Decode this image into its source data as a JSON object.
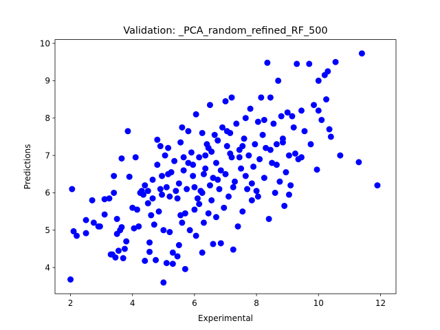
{
  "chart_data": {
    "type": "scatter",
    "title": "Validation: _PCA_random_refined_RF_500",
    "xlabel": "Experimental",
    "ylabel": "Predictions",
    "xlim": [
      1.5,
      12.5
    ],
    "ylim": [
      3.3,
      10.1
    ],
    "xticks": [
      2,
      4,
      6,
      8,
      10,
      12
    ],
    "yticks": [
      4,
      5,
      6,
      7,
      8,
      9,
      10
    ],
    "marker_color": "#0000ff",
    "grid": false,
    "legend": "none",
    "points": [
      [
        2.0,
        3.68
      ],
      [
        2.05,
        6.1
      ],
      [
        2.1,
        4.97
      ],
      [
        2.2,
        4.85
      ],
      [
        2.5,
        4.92
      ],
      [
        2.5,
        5.27
      ],
      [
        2.7,
        5.8
      ],
      [
        2.75,
        5.2
      ],
      [
        2.95,
        5.1
      ],
      [
        3.1,
        5.42
      ],
      [
        3.1,
        5.83
      ],
      [
        3.25,
        5.85
      ],
      [
        3.35,
        4.35
      ],
      [
        3.4,
        6.0
      ],
      [
        3.4,
        6.45
      ],
      [
        3.45,
        4.27
      ],
      [
        3.5,
        5.3
      ],
      [
        3.5,
        4.9
      ],
      [
        3.55,
        4.45
      ],
      [
        3.6,
        5.0
      ],
      [
        3.65,
        6.92
      ],
      [
        3.65,
        5.08
      ],
      [
        3.7,
        4.25
      ],
      [
        3.75,
        4.5
      ],
      [
        3.8,
        4.7
      ],
      [
        3.85,
        7.65
      ],
      [
        3.9,
        6.43
      ],
      [
        4.0,
        5.6
      ],
      [
        4.05,
        5.05
      ],
      [
        4.1,
        6.95
      ],
      [
        4.15,
        5.55
      ],
      [
        4.2,
        5.1
      ],
      [
        4.25,
        6.0
      ],
      [
        4.35,
        5.95
      ],
      [
        4.4,
        6.2
      ],
      [
        4.4,
        4.18
      ],
      [
        4.5,
        5.72
      ],
      [
        4.5,
        6.05
      ],
      [
        4.55,
        4.67
      ],
      [
        4.55,
        4.42
      ],
      [
        4.6,
        5.4
      ],
      [
        4.65,
        6.35
      ],
      [
        4.7,
        5.15
      ],
      [
        4.75,
        4.2
      ],
      [
        4.8,
        7.42
      ],
      [
        4.8,
        6.75
      ],
      [
        4.85,
        5.5
      ],
      [
        4.9,
        6.1
      ],
      [
        4.9,
        7.25
      ],
      [
        4.95,
        6.45
      ],
      [
        5.0,
        3.6
      ],
      [
        5.0,
        5.0
      ],
      [
        5.05,
        7.0
      ],
      [
        5.1,
        4.12
      ],
      [
        5.1,
        6.15
      ],
      [
        5.15,
        7.2
      ],
      [
        5.2,
        4.95
      ],
      [
        5.2,
        5.9
      ],
      [
        5.25,
        6.55
      ],
      [
        5.3,
        4.4
      ],
      [
        5.3,
        4.1
      ],
      [
        5.35,
        6.85
      ],
      [
        5.4,
        6.05
      ],
      [
        5.45,
        4.3
      ],
      [
        5.5,
        4.6
      ],
      [
        5.5,
        6.25
      ],
      [
        5.55,
        7.35
      ],
      [
        5.55,
        5.4
      ],
      [
        5.6,
        5.2
      ],
      [
        5.6,
        7.75
      ],
      [
        5.65,
        6.6
      ],
      [
        5.7,
        3.96
      ],
      [
        5.7,
        5.45
      ],
      [
        5.75,
        6.1
      ],
      [
        5.8,
        7.65
      ],
      [
        5.85,
        5.0
      ],
      [
        5.9,
        7.08
      ],
      [
        5.95,
        6.75
      ],
      [
        6.0,
        5.55
      ],
      [
        6.0,
        6.15
      ],
      [
        6.05,
        8.1
      ],
      [
        6.05,
        4.85
      ],
      [
        6.1,
        5.85
      ],
      [
        6.15,
        6.95
      ],
      [
        6.2,
        6.05
      ],
      [
        6.25,
        4.4
      ],
      [
        6.25,
        7.6
      ],
      [
        6.3,
        5.2
      ],
      [
        6.3,
        6.5
      ],
      [
        6.35,
        7.0
      ],
      [
        6.4,
        7.3
      ],
      [
        6.45,
        5.45
      ],
      [
        6.5,
        8.35
      ],
      [
        6.5,
        6.2
      ],
      [
        6.55,
        7.1
      ],
      [
        6.6,
        4.63
      ],
      [
        6.6,
        6.4
      ],
      [
        6.65,
        7.55
      ],
      [
        6.7,
        5.35
      ],
      [
        6.7,
        6.8
      ],
      [
        6.75,
        7.4
      ],
      [
        6.8,
        6.1
      ],
      [
        6.85,
        4.65
      ],
      [
        6.9,
        7.75
      ],
      [
        6.95,
        5.6
      ],
      [
        7.0,
        8.45
      ],
      [
        7.0,
        6.5
      ],
      [
        7.05,
        7.25
      ],
      [
        7.1,
        5.9
      ],
      [
        7.15,
        7.6
      ],
      [
        7.2,
        8.55
      ],
      [
        7.2,
        6.95
      ],
      [
        7.25,
        4.48
      ],
      [
        7.3,
        6.3
      ],
      [
        7.35,
        7.85
      ],
      [
        7.4,
        5.1
      ],
      [
        7.45,
        7.15
      ],
      [
        7.5,
        6.65
      ],
      [
        7.55,
        5.5
      ],
      [
        7.6,
        7.45
      ],
      [
        7.65,
        8.0
      ],
      [
        7.7,
        6.1
      ],
      [
        7.75,
        7.0
      ],
      [
        7.8,
        8.25
      ],
      [
        7.85,
        5.8
      ],
      [
        7.9,
        6.7
      ],
      [
        7.95,
        7.3
      ],
      [
        8.0,
        6.05
      ],
      [
        8.05,
        7.9
      ],
      [
        8.1,
        6.9
      ],
      [
        8.15,
        8.55
      ],
      [
        8.2,
        7.55
      ],
      [
        8.25,
        6.4
      ],
      [
        8.3,
        7.2
      ],
      [
        8.35,
        9.48
      ],
      [
        8.4,
        5.3
      ],
      [
        8.45,
        8.55
      ],
      [
        8.5,
        6.8
      ],
      [
        8.55,
        7.85
      ],
      [
        8.6,
        6.0
      ],
      [
        8.65,
        7.3
      ],
      [
        8.7,
        9.0
      ],
      [
        8.75,
        6.3
      ],
      [
        8.8,
        8.05
      ],
      [
        8.85,
        7.45
      ],
      [
        8.9,
        5.65
      ],
      [
        8.95,
        6.55
      ],
      [
        9.0,
        8.15
      ],
      [
        9.05,
        7.0
      ],
      [
        9.1,
        6.2
      ],
      [
        9.15,
        8.05
      ],
      [
        9.2,
        7.75
      ],
      [
        9.3,
        9.45
      ],
      [
        9.35,
        6.9
      ],
      [
        9.45,
        8.2
      ],
      [
        9.55,
        7.65
      ],
      [
        9.7,
        9.45
      ],
      [
        9.75,
        7.3
      ],
      [
        9.85,
        8.35
      ],
      [
        9.95,
        6.62
      ],
      [
        10.0,
        8.2
      ],
      [
        10.0,
        9.0
      ],
      [
        10.1,
        7.95
      ],
      [
        10.2,
        9.15
      ],
      [
        10.25,
        8.5
      ],
      [
        10.3,
        9.25
      ],
      [
        10.35,
        7.7
      ],
      [
        10.4,
        7.5
      ],
      [
        10.55,
        9.5
      ],
      [
        10.7,
        7.0
      ],
      [
        11.3,
        6.82
      ],
      [
        11.4,
        9.73
      ],
      [
        11.9,
        6.2
      ],
      [
        2.9,
        5.1
      ],
      [
        3.3,
        4.35
      ],
      [
        4.3,
        6.05
      ],
      [
        5.15,
        6.5
      ],
      [
        5.45,
        5.85
      ],
      [
        5.8,
        6.8
      ],
      [
        6.15,
        5.7
      ],
      [
        6.35,
        6.65
      ],
      [
        6.55,
        5.8
      ],
      [
        6.75,
        6.35
      ],
      [
        7.05,
        7.65
      ],
      [
        7.25,
        6.15
      ],
      [
        7.45,
        6.95
      ],
      [
        7.65,
        6.45
      ],
      [
        7.85,
        6.25
      ],
      [
        8.05,
        5.9
      ],
      [
        8.25,
        7.95
      ],
      [
        8.45,
        7.15
      ],
      [
        8.65,
        6.75
      ],
      [
        8.85,
        7.35
      ],
      [
        9.05,
        5.95
      ],
      [
        9.25,
        7.05
      ],
      [
        9.45,
        6.95
      ],
      [
        6.45,
        7.2
      ],
      [
        5.95,
        6.45
      ],
      [
        6.85,
        6.6
      ],
      [
        7.15,
        7.05
      ],
      [
        7.55,
        7.25
      ],
      [
        6.25,
        6.0
      ],
      [
        5.65,
        6.95
      ],
      [
        4.95,
        5.95
      ],
      [
        4.65,
        5.85
      ]
    ]
  }
}
